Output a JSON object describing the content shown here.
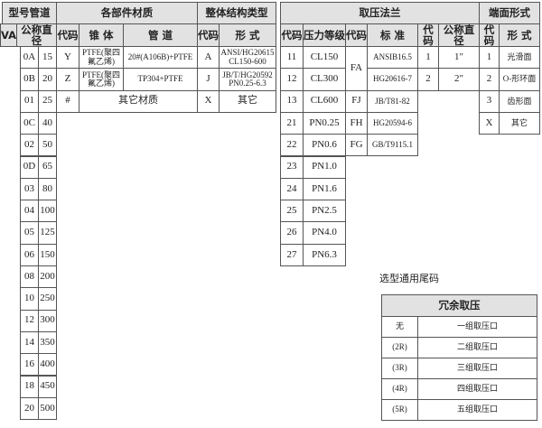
{
  "header": {
    "model_pipe": "型号管道",
    "materials": "各部件材质",
    "structure": "整体结构类型",
    "flange": "取压法兰",
    "end_face": "端面形式"
  },
  "subheader": {
    "va": "VA",
    "nominal_diameter": "公称直径",
    "mat_code": "代码",
    "cone": "锥 体",
    "pipe": "管 道",
    "struct_code": "代码",
    "struct_form": "形 式",
    "pressure_code": "代码",
    "pressure_class": "压力等级",
    "standard_code": "代码",
    "standard": "标 准",
    "size_code": "代码",
    "size_nominal": "公称直径",
    "face_code": "代码",
    "face_form": "形 式"
  },
  "pipe_sizes": [
    [
      "0A",
      "15"
    ],
    [
      "0B",
      "20"
    ],
    [
      "01",
      "25"
    ],
    [
      "0C",
      "40"
    ],
    [
      "02",
      "50"
    ],
    [
      "0D",
      "65"
    ],
    [
      "03",
      "80"
    ],
    [
      "04",
      "100"
    ],
    [
      "05",
      "125"
    ],
    [
      "06",
      "150"
    ],
    [
      "08",
      "200"
    ],
    [
      "10",
      "250"
    ],
    [
      "12",
      "300"
    ],
    [
      "14",
      "350"
    ],
    [
      "16",
      "400"
    ],
    [
      "18",
      "450"
    ],
    [
      "20",
      "500"
    ]
  ],
  "materials": [
    {
      "code": "Y",
      "cone": "PTFE(聚四氟乙烯)",
      "pipe": "20#(A106B)+PTFE"
    },
    {
      "code": "Z",
      "cone": "PTFE(聚四氟乙烯)",
      "pipe": "TP304+PTFE"
    },
    {
      "code": "#",
      "other": "其它材质"
    }
  ],
  "structures": [
    {
      "code": "A",
      "form": "ANSI/HG20615 CL150-600"
    },
    {
      "code": "J",
      "form": "JB/T/HG20592 PN0.25-6.3"
    },
    {
      "code": "X",
      "form": "其它"
    }
  ],
  "pressures": [
    [
      "11",
      "CL150"
    ],
    [
      "12",
      "CL300"
    ],
    [
      "13",
      "CL600"
    ],
    [
      "21",
      "PN0.25"
    ],
    [
      "22",
      "PN0.6"
    ],
    [
      "23",
      "PN1.0"
    ],
    [
      "24",
      "PN1.6"
    ],
    [
      "25",
      "PN2.5"
    ],
    [
      "26",
      "PN4.0"
    ],
    [
      "27",
      "PN6.3"
    ]
  ],
  "standards": [
    {
      "code": "FA",
      "standard": [
        "ANSIB16.5",
        "HG20616-7"
      ]
    },
    {
      "code": "FJ",
      "standard": [
        "JB/T81-82"
      ]
    },
    {
      "code": "FH",
      "standard": [
        "HG20594-6"
      ]
    },
    {
      "code": "FG",
      "standard": [
        "GB/T9115.1"
      ]
    }
  ],
  "tap_sizes": [
    [
      "1",
      "1″"
    ],
    [
      "2",
      "2″"
    ]
  ],
  "end_faces": [
    [
      "1",
      "光滑面"
    ],
    [
      "2",
      "O-形环面"
    ],
    [
      "3",
      "齿形面"
    ],
    [
      "X",
      "其它"
    ]
  ],
  "suffix": {
    "title": "选型通用尾码",
    "header": "冗余取压",
    "rows": [
      [
        "无",
        "一组取压口"
      ],
      [
        "(2R)",
        "二组取压口"
      ],
      [
        "(3R)",
        "三组取压口"
      ],
      [
        "(4R)",
        "四组取压口"
      ],
      [
        "(5R)",
        "五组取压口"
      ]
    ]
  }
}
